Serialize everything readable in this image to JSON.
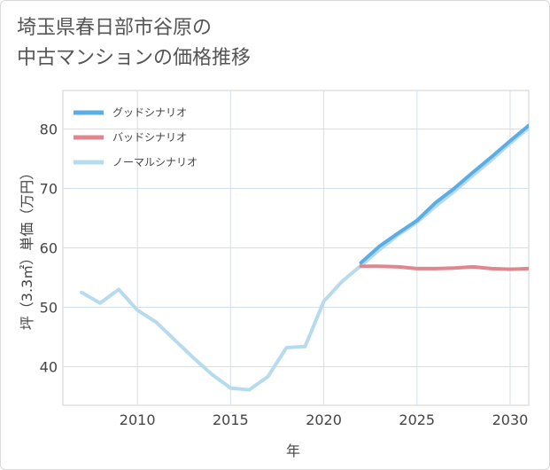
{
  "title_lines": [
    "埼玉県春日部市谷原の",
    "中古マンションの価格推移"
  ],
  "chart_data": {
    "type": "line",
    "title": "埼玉県春日部市谷原の中古マンションの価格推移",
    "xlabel": "年",
    "ylabel": "坪（3.3㎡）単価（万円）",
    "xlim": [
      2006,
      2031
    ],
    "ylim": [
      33.5,
      86.5
    ],
    "x_ticks": [
      2010,
      2015,
      2020,
      2025,
      2030
    ],
    "y_ticks": [
      40,
      50,
      60,
      70,
      80
    ],
    "grid": true,
    "legend_position": "top-left",
    "series": [
      {
        "name": "グッドシナリオ",
        "color": "#5aaee3",
        "x": [
          2022,
          2023,
          2024,
          2025,
          2026,
          2027,
          2028,
          2029,
          2030,
          2031
        ],
        "values": [
          57.5,
          60.3,
          62.5,
          64.6,
          67.6,
          70.0,
          72.7,
          75.3,
          78.0,
          80.6
        ]
      },
      {
        "name": "バッドシナリオ",
        "color": "#e0868f",
        "x": [
          2022,
          2023,
          2024,
          2025,
          2026,
          2027,
          2028,
          2029,
          2030,
          2031
        ],
        "values": [
          56.9,
          56.9,
          56.8,
          56.5,
          56.5,
          56.6,
          56.8,
          56.5,
          56.4,
          56.5
        ]
      },
      {
        "name": "ノーマルシナリオ",
        "color": "#b7dbee",
        "x": [
          2007,
          2008,
          2009,
          2010,
          2011,
          2012,
          2013,
          2014,
          2015,
          2016,
          2017,
          2018,
          2019,
          2020,
          2021,
          2022,
          2023,
          2024,
          2025,
          2026,
          2027,
          2028,
          2029,
          2030,
          2031
        ],
        "values": [
          52.5,
          50.7,
          53.0,
          49.5,
          47.5,
          44.5,
          41.5,
          38.7,
          36.4,
          36.1,
          38.3,
          43.2,
          43.4,
          51.0,
          54.4,
          57.0,
          59.7,
          62.2,
          64.3,
          67.0,
          69.5,
          72.2,
          74.8,
          77.6,
          80.2
        ]
      }
    ]
  }
}
